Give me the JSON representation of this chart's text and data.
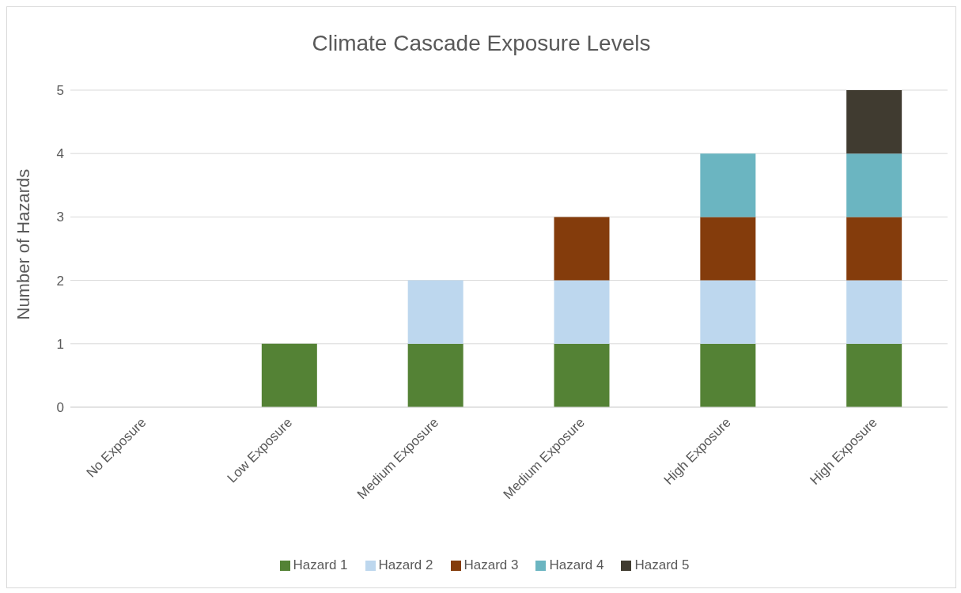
{
  "chart_data": {
    "type": "bar",
    "title": "Climate Cascade Exposure Levels",
    "ylabel": "Number of Hazards",
    "categories": [
      "No Exposure",
      "Low Exposure",
      "Medium Exposure",
      "Medium Exposure",
      "High Exposure",
      "High Exposure"
    ],
    "stacked": true,
    "ylim": [
      0,
      5
    ],
    "yticks": [
      0,
      1,
      2,
      3,
      4,
      5
    ],
    "grid": "y",
    "legend": "bottom",
    "series": [
      {
        "name": "Hazard 1",
        "color": "#548235",
        "values": [
          null,
          1,
          1,
          1,
          1,
          1
        ]
      },
      {
        "name": "Hazard 2",
        "color": "#bdd7ee",
        "values": [
          null,
          null,
          1,
          1,
          1,
          1
        ]
      },
      {
        "name": "Hazard 3",
        "color": "#843c0c",
        "values": [
          null,
          null,
          null,
          1,
          1,
          1
        ]
      },
      {
        "name": "Hazard 4",
        "color": "#6bb5c1",
        "values": [
          null,
          null,
          null,
          null,
          1,
          1
        ]
      },
      {
        "name": "Hazard 5",
        "color": "#403b30",
        "values": [
          null,
          null,
          null,
          null,
          null,
          1
        ]
      }
    ]
  }
}
